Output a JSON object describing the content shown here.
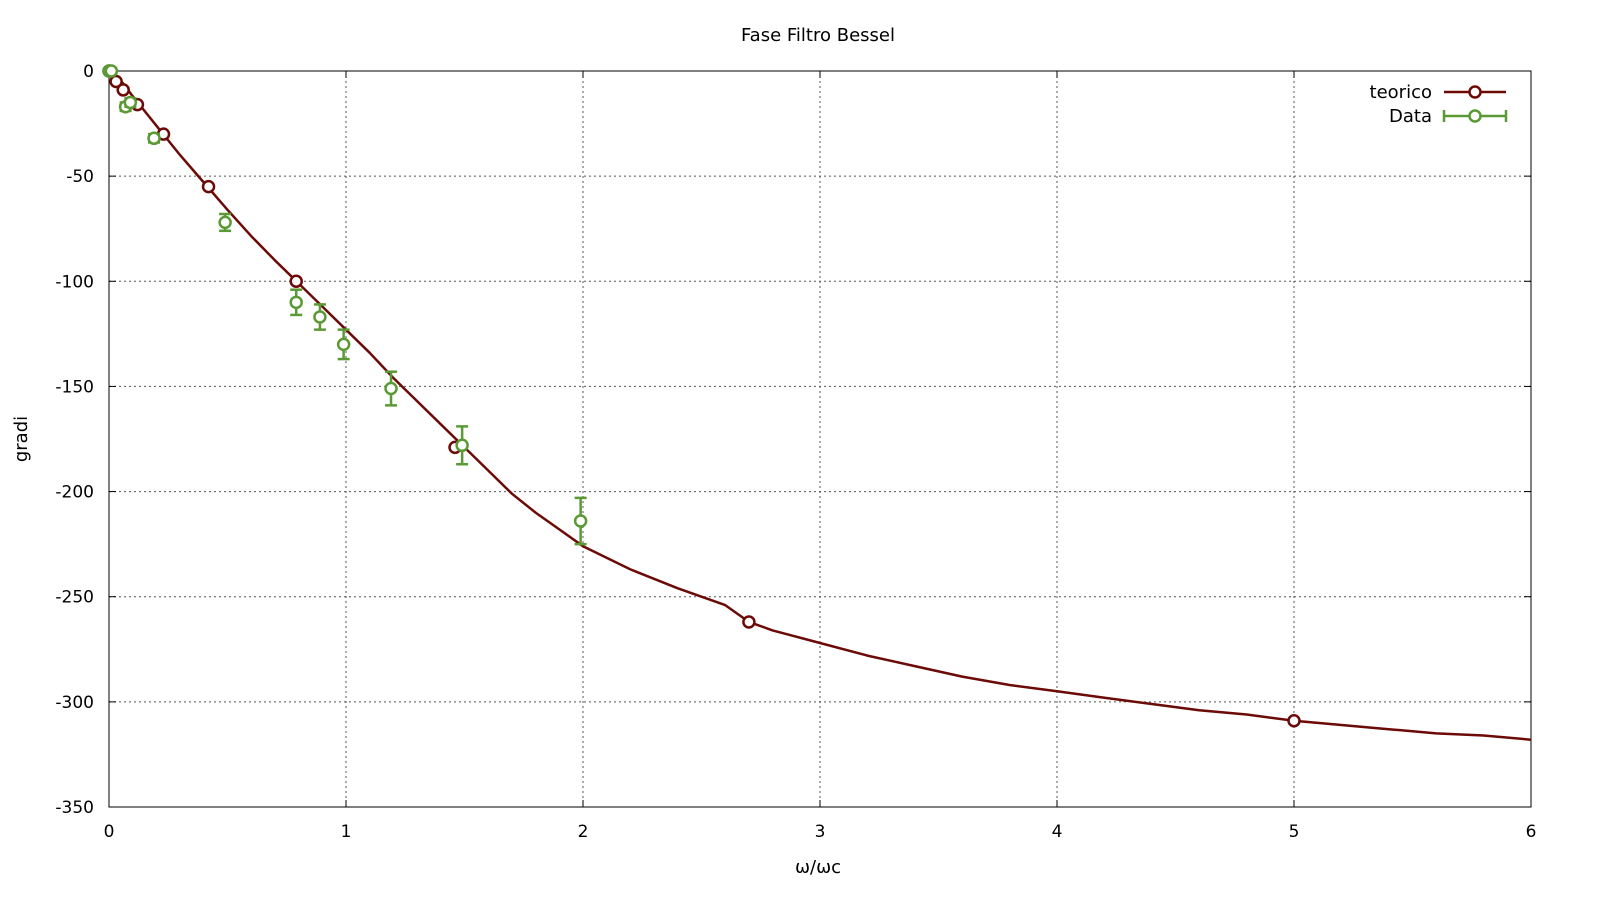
{
  "chart_data": {
    "type": "line",
    "title": "Fase Filtro Bessel",
    "xlabel": "ω/ωc",
    "ylabel": "gradi",
    "xlim": [
      0,
      6
    ],
    "ylim": [
      -350,
      0
    ],
    "xticks": [
      0,
      1,
      2,
      3,
      4,
      5,
      6
    ],
    "yticks": [
      0,
      -50,
      -100,
      -150,
      -200,
      -250,
      -300,
      -350
    ],
    "grid": true,
    "legend_position": "top-right",
    "series": [
      {
        "name": "teorico",
        "style": "line-with-markers",
        "color": "#6b0a06",
        "curve": [
          [
            0,
            0
          ],
          [
            0.05,
            -4.5
          ],
          [
            0.1,
            -12
          ],
          [
            0.15,
            -19
          ],
          [
            0.2,
            -26
          ],
          [
            0.3,
            -40
          ],
          [
            0.4,
            -53
          ],
          [
            0.5,
            -66
          ],
          [
            0.6,
            -78.5
          ],
          [
            0.7,
            -90
          ],
          [
            0.8,
            -101
          ],
          [
            0.9,
            -112
          ],
          [
            1.0,
            -123
          ],
          [
            1.1,
            -134
          ],
          [
            1.2,
            -146
          ],
          [
            1.3,
            -157
          ],
          [
            1.4,
            -168
          ],
          [
            1.5,
            -179
          ],
          [
            1.6,
            -190
          ],
          [
            1.7,
            -201
          ],
          [
            1.8,
            -210
          ],
          [
            1.9,
            -218
          ],
          [
            2.0,
            -226
          ],
          [
            2.2,
            -237
          ],
          [
            2.4,
            -246
          ],
          [
            2.6,
            -254
          ],
          [
            2.7,
            -262
          ],
          [
            2.8,
            -266
          ],
          [
            3.0,
            -272
          ],
          [
            3.2,
            -278
          ],
          [
            3.4,
            -283
          ],
          [
            3.6,
            -288
          ],
          [
            3.8,
            -292
          ],
          [
            4.0,
            -295
          ],
          [
            4.2,
            -298
          ],
          [
            4.4,
            -301
          ],
          [
            4.6,
            -304
          ],
          [
            4.8,
            -306
          ],
          [
            5.0,
            -309
          ],
          [
            5.2,
            -311
          ],
          [
            5.4,
            -313
          ],
          [
            5.6,
            -315
          ],
          [
            5.8,
            -316
          ],
          [
            6.0,
            -318
          ]
        ],
        "markers": [
          [
            0,
            0
          ],
          [
            0.03,
            -5
          ],
          [
            0.06,
            -9
          ],
          [
            0.12,
            -16
          ],
          [
            0.23,
            -30
          ],
          [
            0.42,
            -55
          ],
          [
            0.79,
            -100
          ],
          [
            1.46,
            -179
          ],
          [
            2.7,
            -262
          ],
          [
            5.0,
            -309
          ]
        ]
      },
      {
        "name": "Data",
        "style": "points-with-errorbars",
        "color": "#5a9a34",
        "points": [
          {
            "x": 0.0,
            "y": 0,
            "err": 1
          },
          {
            "x": 0.01,
            "y": 0,
            "err": 1
          },
          {
            "x": 0.07,
            "y": -17,
            "err": 2
          },
          {
            "x": 0.09,
            "y": -15,
            "err": 2
          },
          {
            "x": 0.19,
            "y": -32,
            "err": 2
          },
          {
            "x": 0.49,
            "y": -72,
            "err": 4
          },
          {
            "x": 0.79,
            "y": -110,
            "err": 6
          },
          {
            "x": 0.89,
            "y": -117,
            "err": 6
          },
          {
            "x": 0.99,
            "y": -130,
            "err": 7
          },
          {
            "x": 1.19,
            "y": -151,
            "err": 8
          },
          {
            "x": 1.49,
            "y": -178,
            "err": 9
          },
          {
            "x": 1.99,
            "y": -214,
            "err": 11
          }
        ]
      }
    ]
  }
}
